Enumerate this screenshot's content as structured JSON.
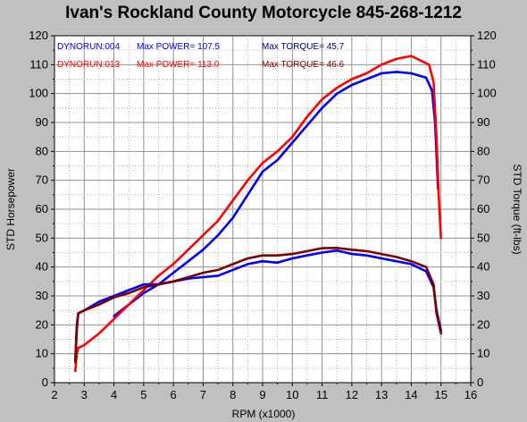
{
  "chart_data": {
    "type": "line",
    "title": "Ivan's Rockland County Motorcycle  845-268-1212",
    "xlabel": "RPM (x1000)",
    "ylabel_left": "STD Horsepower",
    "ylabel_right": "STD Torque (ft-lbs)",
    "xlim": [
      2,
      16
    ],
    "ylim": [
      0,
      120
    ],
    "x_ticks": [
      "2",
      "3",
      "4",
      "5",
      "6",
      "7",
      "8",
      "9",
      "10",
      "11",
      "12",
      "13",
      "14",
      "15",
      "16"
    ],
    "y_ticks": [
      "0",
      "10",
      "20",
      "30",
      "40",
      "50",
      "60",
      "70",
      "80",
      "90",
      "100",
      "110",
      "120"
    ],
    "grid": true,
    "legend": [
      {
        "run": "DYNORUN:004",
        "power": "Max POWER= 107.5",
        "torque": "Max TORQUE= 45.7",
        "color": "#0000ff"
      },
      {
        "run": "DYNORUN:013",
        "power": "Max POWER= 113.0",
        "torque": "Max TORQUE= 46.6",
        "color": "#ff0000"
      }
    ],
    "series": [
      {
        "name": "DYNORUN:004",
        "color": "#0000ff",
        "kind": "power",
        "points": [
          [
            4.0,
            23
          ],
          [
            4.5,
            27
          ],
          [
            5.0,
            31
          ],
          [
            5.5,
            34
          ],
          [
            6.0,
            38
          ],
          [
            6.5,
            42
          ],
          [
            7.0,
            46
          ],
          [
            7.5,
            51
          ],
          [
            8.0,
            57
          ],
          [
            8.5,
            65
          ],
          [
            9.0,
            73
          ],
          [
            9.5,
            77
          ],
          [
            10.0,
            83
          ],
          [
            10.5,
            89
          ],
          [
            11.0,
            95
          ],
          [
            11.5,
            100
          ],
          [
            12.0,
            103
          ],
          [
            12.5,
            105
          ],
          [
            13.0,
            107
          ],
          [
            13.5,
            107.5
          ],
          [
            14.0,
            107
          ],
          [
            14.5,
            105.5
          ],
          [
            14.7,
            101
          ],
          [
            14.8,
            90
          ],
          [
            14.9,
            67
          ]
        ]
      },
      {
        "name": "DYNORUN:013",
        "color": "#ff0000",
        "kind": "power",
        "points": [
          [
            2.7,
            4
          ],
          [
            2.75,
            10
          ],
          [
            2.8,
            12
          ],
          [
            3.0,
            13
          ],
          [
            3.5,
            17
          ],
          [
            4.0,
            22
          ],
          [
            4.5,
            27
          ],
          [
            5.0,
            32
          ],
          [
            5.5,
            37
          ],
          [
            6.0,
            41
          ],
          [
            6.5,
            46
          ],
          [
            7.0,
            51
          ],
          [
            7.5,
            56
          ],
          [
            8.0,
            63
          ],
          [
            8.5,
            70
          ],
          [
            9.0,
            76
          ],
          [
            9.5,
            80
          ],
          [
            10.0,
            85
          ],
          [
            10.5,
            92
          ],
          [
            11.0,
            98
          ],
          [
            11.5,
            102
          ],
          [
            12.0,
            105
          ],
          [
            12.5,
            107
          ],
          [
            13.0,
            110
          ],
          [
            13.5,
            112
          ],
          [
            14.0,
            113
          ],
          [
            14.3,
            111.5
          ],
          [
            14.6,
            110
          ],
          [
            14.75,
            104
          ],
          [
            14.85,
            85
          ],
          [
            14.92,
            65
          ],
          [
            15.0,
            50
          ]
        ]
      },
      {
        "name": "DYNORUN:004",
        "color": "#0000ff",
        "kind": "torque",
        "points": [
          [
            2.7,
            8
          ],
          [
            2.75,
            20
          ],
          [
            2.8,
            24
          ],
          [
            3.0,
            25
          ],
          [
            3.5,
            28
          ],
          [
            4.0,
            30
          ],
          [
            4.5,
            32
          ],
          [
            5.0,
            34
          ],
          [
            5.5,
            34
          ],
          [
            6.0,
            35
          ],
          [
            6.5,
            36
          ],
          [
            7.0,
            36.5
          ],
          [
            7.5,
            37
          ],
          [
            8.0,
            39
          ],
          [
            8.5,
            41
          ],
          [
            9.0,
            42
          ],
          [
            9.5,
            41.5
          ],
          [
            10.0,
            43
          ],
          [
            10.5,
            44
          ],
          [
            11.0,
            45
          ],
          [
            11.5,
            45.7
          ],
          [
            12.0,
            44.5
          ],
          [
            12.5,
            44
          ],
          [
            13.0,
            43
          ],
          [
            13.5,
            42
          ],
          [
            14.0,
            41
          ],
          [
            14.5,
            38.5
          ],
          [
            14.75,
            33
          ],
          [
            14.85,
            25
          ],
          [
            15.0,
            18
          ]
        ]
      },
      {
        "name": "DYNORUN:013",
        "color": "#800000",
        "kind": "torque",
        "points": [
          [
            2.7,
            7
          ],
          [
            2.75,
            18
          ],
          [
            2.8,
            24
          ],
          [
            3.0,
            25
          ],
          [
            3.5,
            27
          ],
          [
            4.0,
            29.5
          ],
          [
            4.5,
            31
          ],
          [
            5.0,
            33
          ],
          [
            5.5,
            34
          ],
          [
            6.0,
            35
          ],
          [
            6.5,
            36.5
          ],
          [
            7.0,
            38
          ],
          [
            7.5,
            39
          ],
          [
            8.0,
            41
          ],
          [
            8.5,
            43
          ],
          [
            9.0,
            44
          ],
          [
            9.5,
            44
          ],
          [
            10.0,
            44.5
          ],
          [
            10.5,
            45.5
          ],
          [
            11.0,
            46.5
          ],
          [
            11.5,
            46.6
          ],
          [
            12.0,
            46
          ],
          [
            12.5,
            45.5
          ],
          [
            13.0,
            44.5
          ],
          [
            13.5,
            43.5
          ],
          [
            14.0,
            42
          ],
          [
            14.5,
            40
          ],
          [
            14.75,
            34
          ],
          [
            14.85,
            24
          ],
          [
            15.0,
            17
          ]
        ]
      }
    ]
  }
}
